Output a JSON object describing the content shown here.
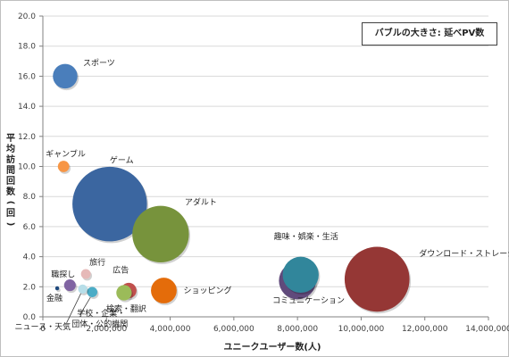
{
  "chart_data": {
    "type": "bubble",
    "xlabel": "ユニークユーザー数(人)",
    "ylabel": "平均訪問回数(回)",
    "size_note": "バブルの大きさ: 延べPV数",
    "xlim": [
      0,
      14000000
    ],
    "ylim": [
      0,
      20
    ],
    "x_ticks": [
      "0",
      "2,000,000",
      "4,000,000",
      "6,000,000",
      "8,000,000",
      "10,000,000",
      "12,000,000",
      "14,000,000"
    ],
    "y_ticks": [
      "0.0",
      "2.0",
      "4.0",
      "6.0",
      "8.0",
      "10.0",
      "12.0",
      "14.0",
      "16.0",
      "18.0",
      "20.0"
    ],
    "points": [
      {
        "label": "スポーツ",
        "x": 700000,
        "y": 16.0,
        "size": 8.6,
        "color": "#4a7ebb"
      },
      {
        "label": "ギャンブル",
        "x": 650000,
        "y": 10.0,
        "size": 4.0,
        "color": "#f79646"
      },
      {
        "label": "ゲーム",
        "x": 2100000,
        "y": 7.5,
        "size": 26.1,
        "color": "#3b66a0"
      },
      {
        "label": "アダルト",
        "x": 3700000,
        "y": 5.5,
        "size": 19.8,
        "color": "#77933c"
      },
      {
        "label": "趣味・娯楽・生活",
        "x": 8100000,
        "y": 2.8,
        "size": 12.6,
        "color": "#31869b"
      },
      {
        "label": "コミュニケーション",
        "x": 8000000,
        "y": 2.4,
        "size": 13.0,
        "color": "#604a7b"
      },
      {
        "label": "ダウンロード・ストレージ",
        "x": 10500000,
        "y": 2.5,
        "size": 22.7,
        "color": "#953735"
      },
      {
        "label": "ショッピング",
        "x": 3800000,
        "y": 1.75,
        "size": 9.0,
        "color": "#e46c0a"
      },
      {
        "label": "広告",
        "x": 2700000,
        "y": 1.75,
        "size": 5.4,
        "color": "#c0504d"
      },
      {
        "label": "検索・翻訳",
        "x": 2550000,
        "y": 1.6,
        "size": 5.4,
        "color": "#9bbb59"
      },
      {
        "label": "旅行",
        "x": 1350000,
        "y": 2.85,
        "size": 3.4,
        "color": "#e6b9b8"
      },
      {
        "label": "職探し",
        "x": 850000,
        "y": 2.1,
        "size": 4.1,
        "color": "#8064a2"
      },
      {
        "label": "学校・企業・団体・公的機関",
        "x": 1550000,
        "y": 1.65,
        "size": 3.6,
        "color": "#4bacc6"
      },
      {
        "label": "ニュース・天気",
        "x": 1250000,
        "y": 1.85,
        "size": 3.2,
        "color": "#b7dee8"
      },
      {
        "label": "金融",
        "x": 450000,
        "y": 1.9,
        "size": 1.4,
        "color": "#1f497d"
      }
    ]
  }
}
